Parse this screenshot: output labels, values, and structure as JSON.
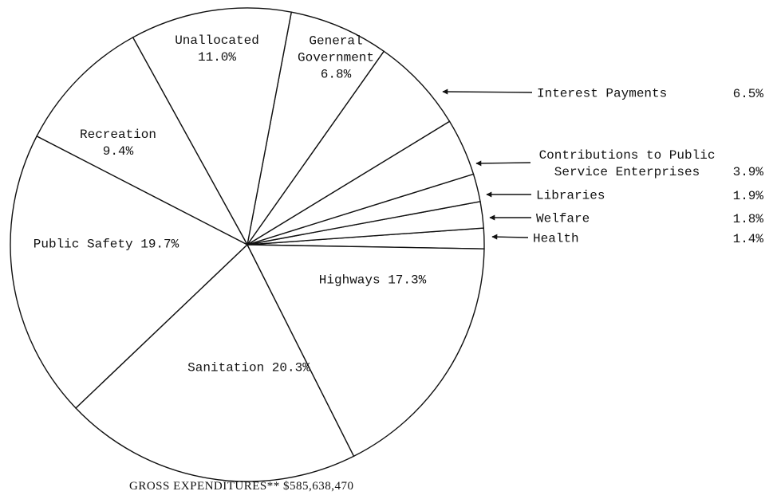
{
  "chart_data": {
    "type": "pie",
    "title": "GROSS EXPENDITURES** $585,638,470",
    "categories": [
      "Health",
      "Welfare",
      "Libraries",
      "Contributions to Public Service Enterprises",
      "Interest Payments",
      "General Government",
      "Unallocated",
      "Recreation",
      "Public Safety",
      "Sanitation",
      "Highways"
    ],
    "values": [
      1.4,
      1.8,
      1.9,
      3.9,
      6.5,
      6.8,
      11.0,
      9.4,
      19.7,
      20.3,
      17.3
    ],
    "value_labels": [
      "1.4%",
      "1.8%",
      "1.9%",
      "3.9%",
      "6.5%",
      "6.8%",
      "11.0%",
      "9.4%",
      "19.7%",
      "20.3%",
      "17.3%"
    ],
    "color": "#ffffff"
  }
}
